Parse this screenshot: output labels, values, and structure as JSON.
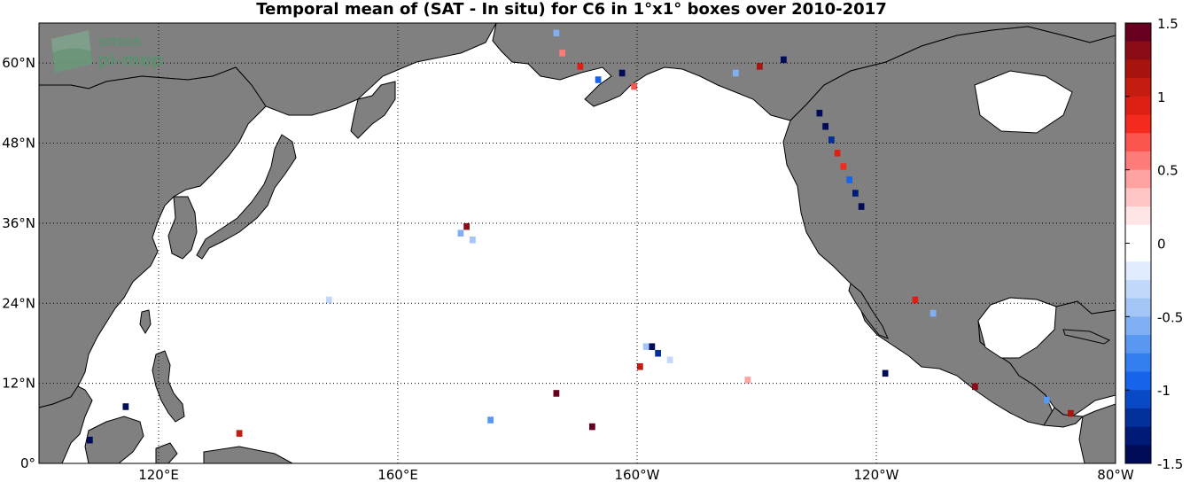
{
  "title": "Temporal mean of (SAT - In situ) for C6 in 1°x1° boxes over 2010-2017",
  "logo": {
    "line1": "smos",
    "line2": "pi-mep"
  },
  "map": {
    "extent": {
      "lon_min": 100,
      "lon_max": 280,
      "lat_min": 0,
      "lat_max": 66
    },
    "land_color": "#808080",
    "ocean_color": "#ffffff",
    "lat_ticks": [
      {
        "value": 0,
        "label": "0°"
      },
      {
        "value": 12,
        "label": "12°N"
      },
      {
        "value": 24,
        "label": "24°N"
      },
      {
        "value": 36,
        "label": "36°N"
      },
      {
        "value": 48,
        "label": "48°N"
      },
      {
        "value": 60,
        "label": "60°N"
      }
    ],
    "lon_ticks": [
      {
        "value": 120,
        "label": "120°E"
      },
      {
        "value": 160,
        "label": "160°E"
      },
      {
        "value": 200,
        "label": "160°W"
      },
      {
        "value": 240,
        "label": "120°W"
      },
      {
        "value": 280,
        "label": "80°W"
      }
    ]
  },
  "colorbar": {
    "min": -1.5,
    "max": 1.5,
    "ticks": [
      {
        "value": 1.5,
        "label": "1.5"
      },
      {
        "value": 1,
        "label": "1"
      },
      {
        "value": 0.5,
        "label": "0.5"
      },
      {
        "value": 0,
        "label": "0"
      },
      {
        "value": -0.5,
        "label": "-0.5"
      },
      {
        "value": -1,
        "label": "-1"
      },
      {
        "value": -1.5,
        "label": "-1.5"
      }
    ],
    "colors": [
      "#67001f",
      "#8b0b16",
      "#a8150f",
      "#c51b10",
      "#de2014",
      "#f52a1e",
      "#fb5550",
      "#fd7b79",
      "#ffa2a1",
      "#ffc6c5",
      "#ffe5e5",
      "#ffffff",
      "#ffffff",
      "#e1ecff",
      "#c3d9fb",
      "#a4c6f6",
      "#80b0f3",
      "#5898f0",
      "#337ff0",
      "#1664ea",
      "#0a49c5",
      "#04309c",
      "#001a78",
      "#000c58"
    ]
  },
  "chart_data": {
    "type": "heatmap",
    "variable": "SAT - In situ",
    "cell_size_deg": 1,
    "cells": [
      {
        "lon": 201,
        "lat": 17,
        "v": -0.4
      },
      {
        "lon": 202,
        "lat": 17,
        "v": -1.5
      },
      {
        "lon": 203,
        "lat": 16,
        "v": -1.2
      },
      {
        "lon": 205,
        "lat": 15,
        "v": -0.3
      },
      {
        "lon": 230,
        "lat": 52,
        "v": -1.5
      },
      {
        "lon": 231,
        "lat": 50,
        "v": -1.4
      },
      {
        "lon": 232,
        "lat": 48,
        "v": -1.2
      },
      {
        "lon": 233,
        "lat": 46,
        "v": 1.0
      },
      {
        "lon": 234,
        "lat": 44,
        "v": 0.8
      },
      {
        "lon": 235,
        "lat": 42,
        "v": -0.9
      },
      {
        "lon": 236,
        "lat": 40,
        "v": -1.3
      },
      {
        "lon": 237,
        "lat": 38,
        "v": -1.5
      },
      {
        "lon": 186,
        "lat": 64,
        "v": -0.6
      },
      {
        "lon": 187,
        "lat": 61,
        "v": 0.6
      },
      {
        "lon": 190,
        "lat": 59,
        "v": 1.0
      },
      {
        "lon": 193,
        "lat": 57,
        "v": -0.9
      },
      {
        "lon": 197,
        "lat": 58,
        "v": -1.4
      },
      {
        "lon": 199,
        "lat": 56,
        "v": 0.7
      },
      {
        "lon": 224,
        "lat": 60,
        "v": -1.5
      },
      {
        "lon": 220,
        "lat": 59,
        "v": 1.2
      },
      {
        "lon": 216,
        "lat": 58,
        "v": -0.5
      },
      {
        "lon": 170,
        "lat": 34,
        "v": -0.6
      },
      {
        "lon": 171,
        "lat": 35,
        "v": 1.3
      },
      {
        "lon": 172,
        "lat": 33,
        "v": -0.4
      },
      {
        "lon": 175,
        "lat": 6,
        "v": -0.7
      },
      {
        "lon": 186,
        "lat": 10,
        "v": 1.4
      },
      {
        "lon": 192,
        "lat": 5,
        "v": 1.5
      },
      {
        "lon": 200,
        "lat": 14,
        "v": 1.1
      },
      {
        "lon": 218,
        "lat": 12,
        "v": 0.4
      },
      {
        "lon": 241,
        "lat": 13,
        "v": -1.5
      },
      {
        "lon": 256,
        "lat": 11,
        "v": 1.3
      },
      {
        "lon": 268,
        "lat": 9,
        "v": -0.7
      },
      {
        "lon": 272,
        "lat": 7,
        "v": 1.2
      },
      {
        "lon": 108,
        "lat": 3,
        "v": -1.5
      },
      {
        "lon": 114,
        "lat": 8,
        "v": -1.5
      },
      {
        "lon": 133,
        "lat": 4,
        "v": 1.1
      },
      {
        "lon": 148,
        "lat": 24,
        "v": -0.3
      },
      {
        "lon": 246,
        "lat": 24,
        "v": 0.9
      },
      {
        "lon": 249,
        "lat": 22,
        "v": -0.5
      }
    ]
  }
}
